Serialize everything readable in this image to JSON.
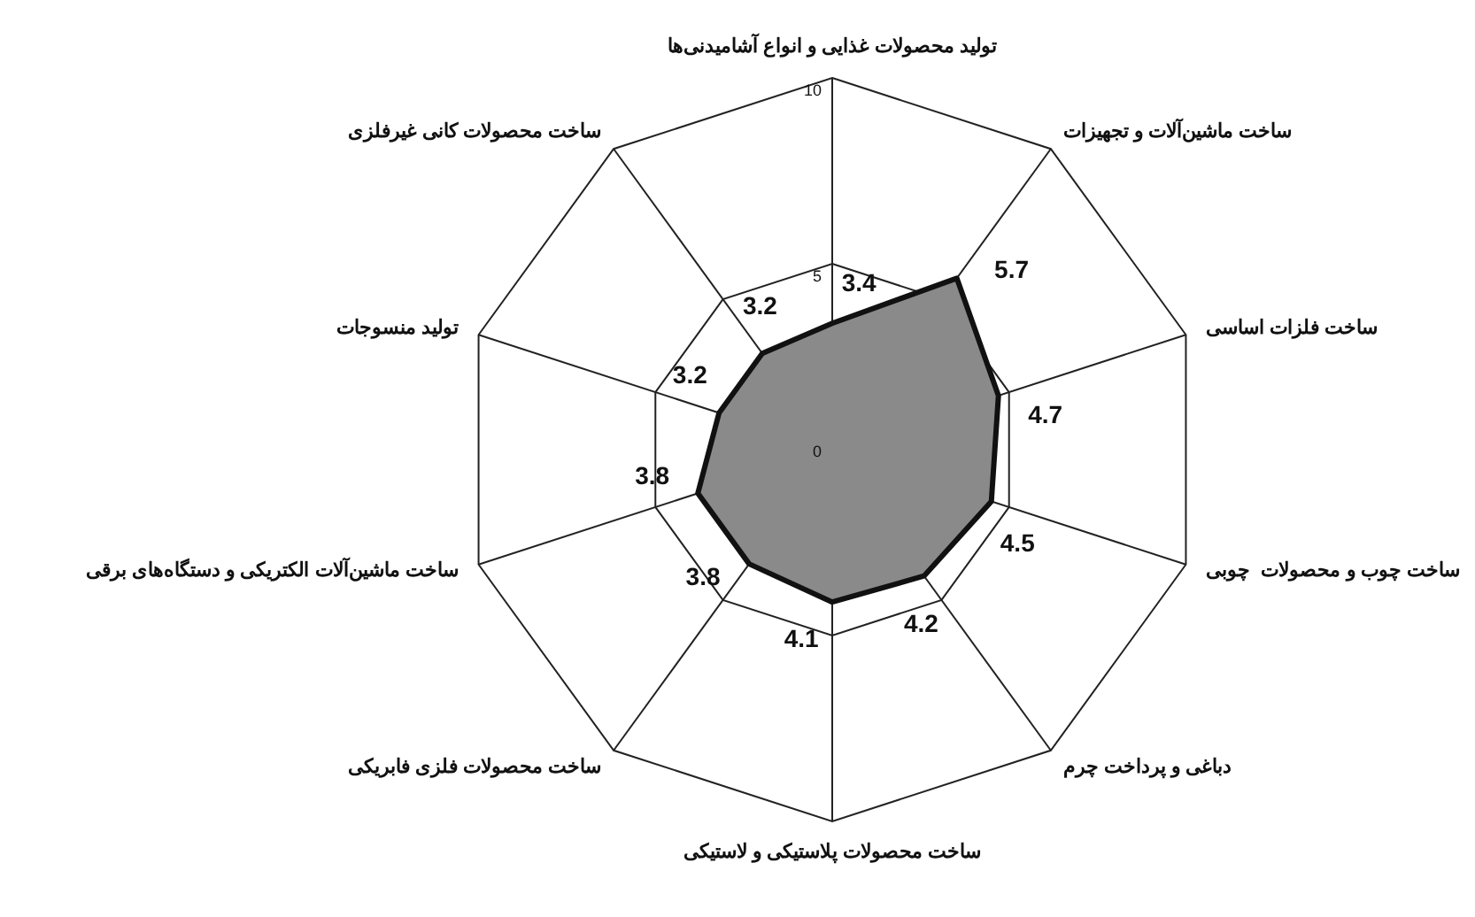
{
  "chart_data": {
    "type": "radar",
    "title": null,
    "categories": [
      "تولید محصولات غذایی و انواع آشامیدنی‌ها",
      "ساخت ماشین‌آلات و تجهیزات",
      "ساخت فلزات اساسی",
      "ساخت چوب و محصولات  چوبی",
      "دباغی و پرداخت چرم",
      "ساخت محصولات پلاستیکی و لاستیکی",
      "ساخت محصولات فلزی فابریکی",
      "ساخت ماشین‌آلات الکتریکی و دستگاه‌های برقی",
      "تولید منسوجات",
      "ساخت محصولات کانی غیرفلزی"
    ],
    "series": [
      {
        "color": "#8a8a8a",
        "values": [
          3.4,
          5.7,
          4.7,
          4.5,
          4.2,
          4.1,
          3.8,
          3.8,
          3.2,
          3.2
        ]
      }
    ],
    "ylim": [
      0,
      10
    ],
    "yticks": [
      0,
      5,
      10
    ],
    "grid": true,
    "data_labels": true,
    "marker": "none",
    "line_style": "solid"
  }
}
